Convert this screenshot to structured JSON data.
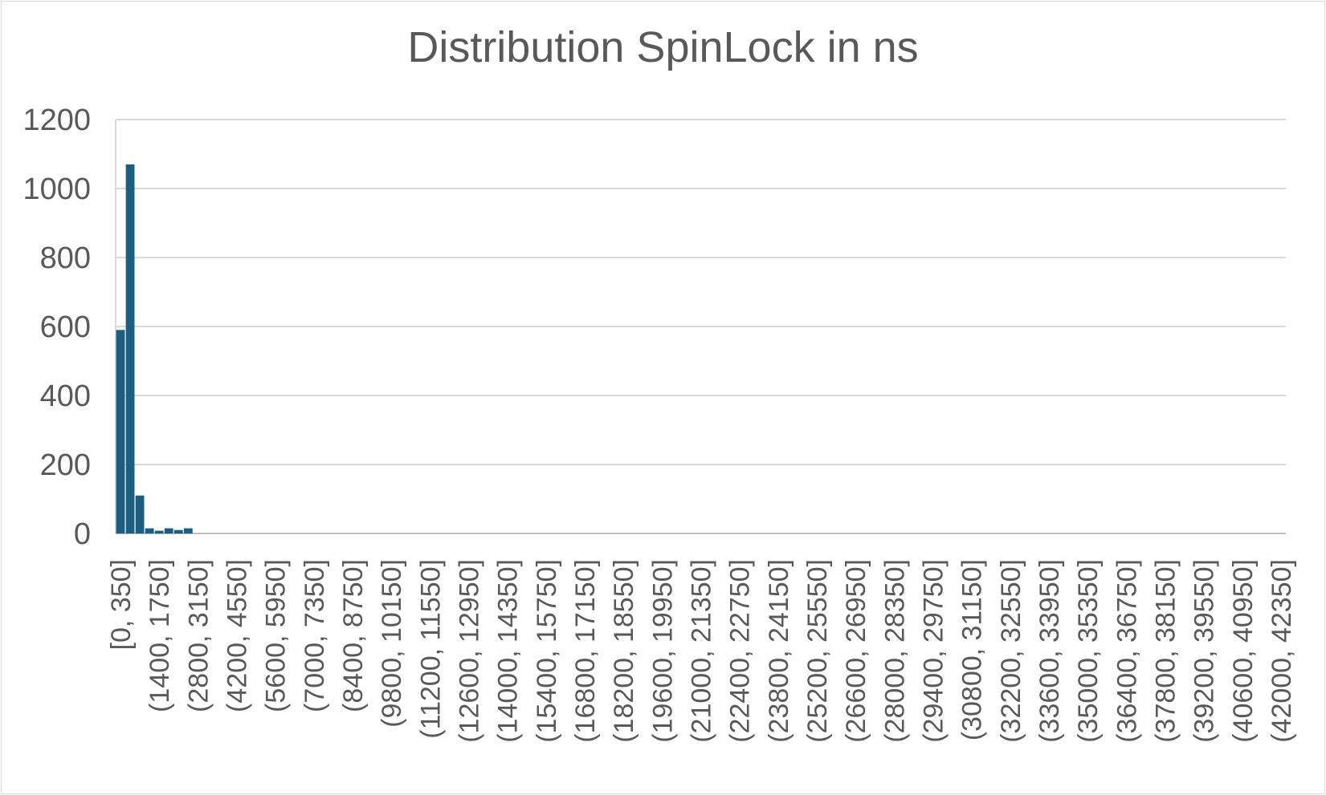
{
  "chart_data": {
    "type": "bar",
    "title": "Distribution SpinLock in ns",
    "xlabel": "",
    "ylabel": "",
    "ylim": [
      0,
      1200
    ],
    "yticks": [
      0,
      200,
      400,
      600,
      800,
      1000,
      1200
    ],
    "grid": true,
    "legend": "none",
    "color": "#1a5e80",
    "categories": [
      "[0, 350]",
      "(350, 700]",
      "(700, 1050]",
      "(1050, 1400]",
      "(1400, 1750]",
      "(1750, 2100]",
      "(2100, 2450]",
      "(2450, 2800]",
      "(2800, 3150]",
      "(3150, 3500]",
      "(3500, 3850]",
      "(3850, 4200]",
      "(4200, 4550]",
      "(4550, 4900]",
      "(4900, 5250]",
      "(5250, 5600]",
      "(5600, 5950]",
      "(5950, 6300]",
      "(6300, 6650]",
      "(6650, 7000]",
      "(7000, 7350]",
      "(7350, 7700]",
      "(7700, 8050]",
      "(8050, 8400]",
      "(8400, 8750]",
      "(8750, 9100]",
      "(9100, 9450]",
      "(9450, 9800]",
      "(9800, 10150]",
      "(10150, 10500]",
      "(10500, 10850]",
      "(10850, 11200]",
      "(11200, 11550]",
      "(11550, 11900]",
      "(11900, 12250]",
      "(12250, 12600]",
      "(12600, 12950]",
      "(12950, 13300]",
      "(13300, 13650]",
      "(13650, 14000]",
      "(14000, 14350]",
      "(14350, 14700]",
      "(14700, 15050]",
      "(15050, 15400]",
      "(15400, 15750]",
      "(15750, 16100]",
      "(16100, 16450]",
      "(16450, 16800]",
      "(16800, 17150]",
      "(17150, 17500]",
      "(17500, 17850]",
      "(17850, 18200]",
      "(18200, 18550]",
      "(18550, 18900]",
      "(18900, 19250]",
      "(19250, 19600]",
      "(19600, 19950]",
      "(19950, 20300]",
      "(20300, 20650]",
      "(20650, 21000]",
      "(21000, 21350]",
      "(21350, 21700]",
      "(21700, 22050]",
      "(22050, 22400]",
      "(22400, 22750]",
      "(22750, 23100]",
      "(23100, 23450]",
      "(23450, 23800]",
      "(23800, 24150]",
      "(24150, 24500]",
      "(24500, 24850]",
      "(24850, 25200]",
      "(25200, 25550]",
      "(25550, 25900]",
      "(25900, 26250]",
      "(26250, 26600]",
      "(26600, 26950]",
      "(26950, 27300]",
      "(27300, 27650]",
      "(27650, 28000]",
      "(28000, 28350]",
      "(28350, 28700]",
      "(28700, 29050]",
      "(29050, 29400]",
      "(29400, 29750]",
      "(29750, 30100]",
      "(30100, 30450]",
      "(30450, 30800]",
      "(30800, 31150]",
      "(31150, 31500]",
      "(31500, 31850]",
      "(31850, 32200]",
      "(32200, 32550]",
      "(32550, 32900]",
      "(32900, 33250]",
      "(33250, 33600]",
      "(33600, 33950]",
      "(33950, 34300]",
      "(34300, 34650]",
      "(34650, 35000]",
      "(35000, 35350]",
      "(35350, 35700]",
      "(35700, 36050]",
      "(36050, 36400]",
      "(36400, 36750]",
      "(36750, 37100]",
      "(37100, 37450]",
      "(37450, 37800]",
      "(37800, 38150]",
      "(38150, 38500]",
      "(38500, 38850]",
      "(38850, 39200]",
      "(39200, 39550]",
      "(39550, 39900]",
      "(39900, 40250]",
      "(40250, 40600]",
      "(40600, 40950]",
      "(40950, 41300]",
      "(41300, 41650]",
      "(41650, 42000]",
      "(42000, 42350]"
    ],
    "values": [
      590,
      1070,
      110,
      15,
      8,
      15,
      10,
      15,
      0,
      0,
      0,
      0,
      0,
      0,
      0,
      0,
      0,
      0,
      0,
      0,
      0,
      0,
      0,
      0,
      0,
      0,
      0,
      0,
      0,
      0,
      0,
      0,
      0,
      0,
      0,
      0,
      0,
      0,
      0,
      0,
      0,
      0,
      0,
      0,
      0,
      0,
      0,
      0,
      0,
      0,
      0,
      0,
      0,
      0,
      0,
      0,
      0,
      0,
      0,
      0,
      0,
      0,
      0,
      0,
      0,
      0,
      0,
      0,
      0,
      0,
      0,
      0,
      0,
      0,
      0,
      0,
      0,
      0,
      0,
      0,
      0,
      0,
      0,
      0,
      0,
      0,
      0,
      0,
      0,
      0,
      0,
      0,
      0,
      0,
      0,
      0,
      0,
      0,
      0,
      0,
      0,
      0,
      0,
      0,
      0,
      0,
      0,
      0,
      0,
      0,
      0,
      0,
      0,
      0,
      0,
      0,
      0,
      0,
      0,
      0,
      0
    ],
    "label_every": 4
  }
}
